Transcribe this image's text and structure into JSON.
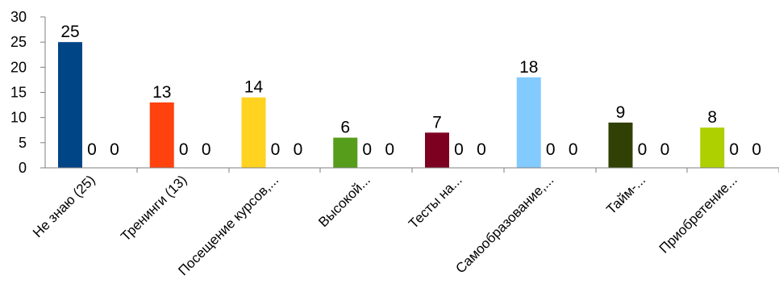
{
  "chart_data": {
    "type": "bar",
    "title": "",
    "xlabel": "",
    "ylabel": "",
    "ylim": [
      0,
      30
    ],
    "yticks": [
      "0",
      "5",
      "10",
      "15",
      "20",
      "25",
      "30"
    ],
    "grid": false,
    "legend": "none",
    "categories": [
      "Не знаю (25)",
      "Тренинги (13)",
      "Посещение курсов,...",
      "Высокой...",
      "Тесты на...",
      "Самообразование,...",
      "Тайм-...",
      "Приобретение..."
    ],
    "series": [
      {
        "values": [
          25,
          13,
          14,
          6,
          7,
          18,
          9,
          8
        ],
        "colors": [
          "#004586",
          "#ff420e",
          "#ffd320",
          "#579d1c",
          "#7e0021",
          "#83caff",
          "#314004",
          "#aecf00"
        ]
      },
      {
        "values": [
          0,
          0,
          0,
          0,
          0,
          0,
          0,
          0
        ]
      },
      {
        "values": [
          0,
          0,
          0,
          0,
          0,
          0,
          0,
          0
        ]
      }
    ],
    "data_labels": {
      "s1": [
        "25",
        "13",
        "14",
        "6",
        "7",
        "18",
        "9",
        "8"
      ],
      "s2": [
        "0",
        "0",
        "0",
        "0",
        "0",
        "0",
        "0",
        "0"
      ],
      "s3": [
        "0",
        "0",
        "0",
        "0",
        "0",
        "0",
        "0",
        "0"
      ]
    }
  },
  "style": {
    "axis_color": "#7f7f7f",
    "text_color": "#000000"
  }
}
